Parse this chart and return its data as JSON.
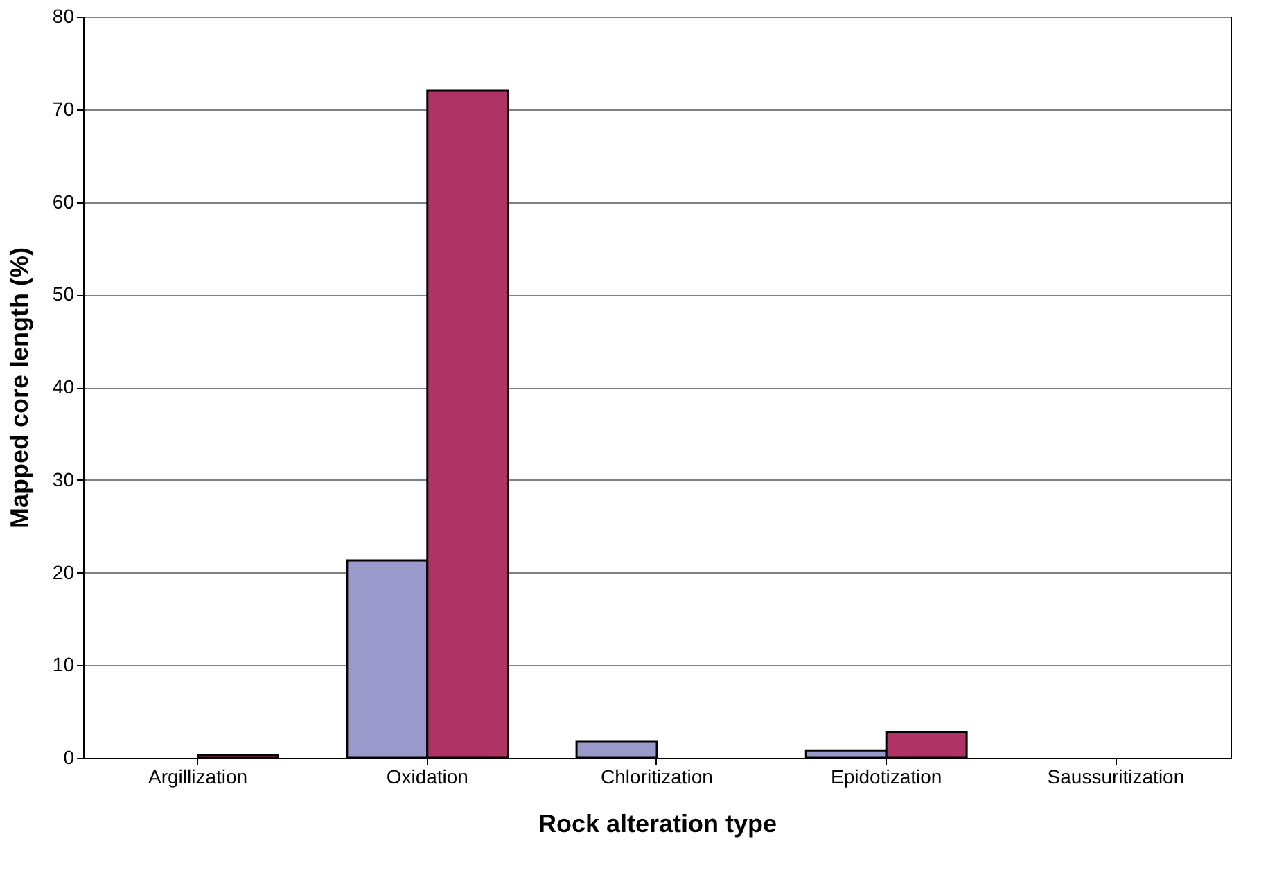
{
  "chart_data": {
    "type": "bar",
    "xlabel": "Rock alteration type",
    "ylabel": "Mapped core length (%)",
    "categories": [
      "Argillization",
      "Oxidation",
      "Chloritization",
      "Epidotization",
      "Saussuritization"
    ],
    "series": [
      {
        "color": "#9999cc",
        "values": [
          0,
          21.3,
          1.8,
          0.8,
          0
        ]
      },
      {
        "color": "#b03366",
        "values": [
          0.3,
          72,
          0,
          2.8,
          0
        ]
      }
    ],
    "ylim": [
      0,
      80
    ],
    "yticks": [
      0,
      10,
      20,
      30,
      40,
      50,
      60,
      70,
      80
    ],
    "grid": "y"
  }
}
